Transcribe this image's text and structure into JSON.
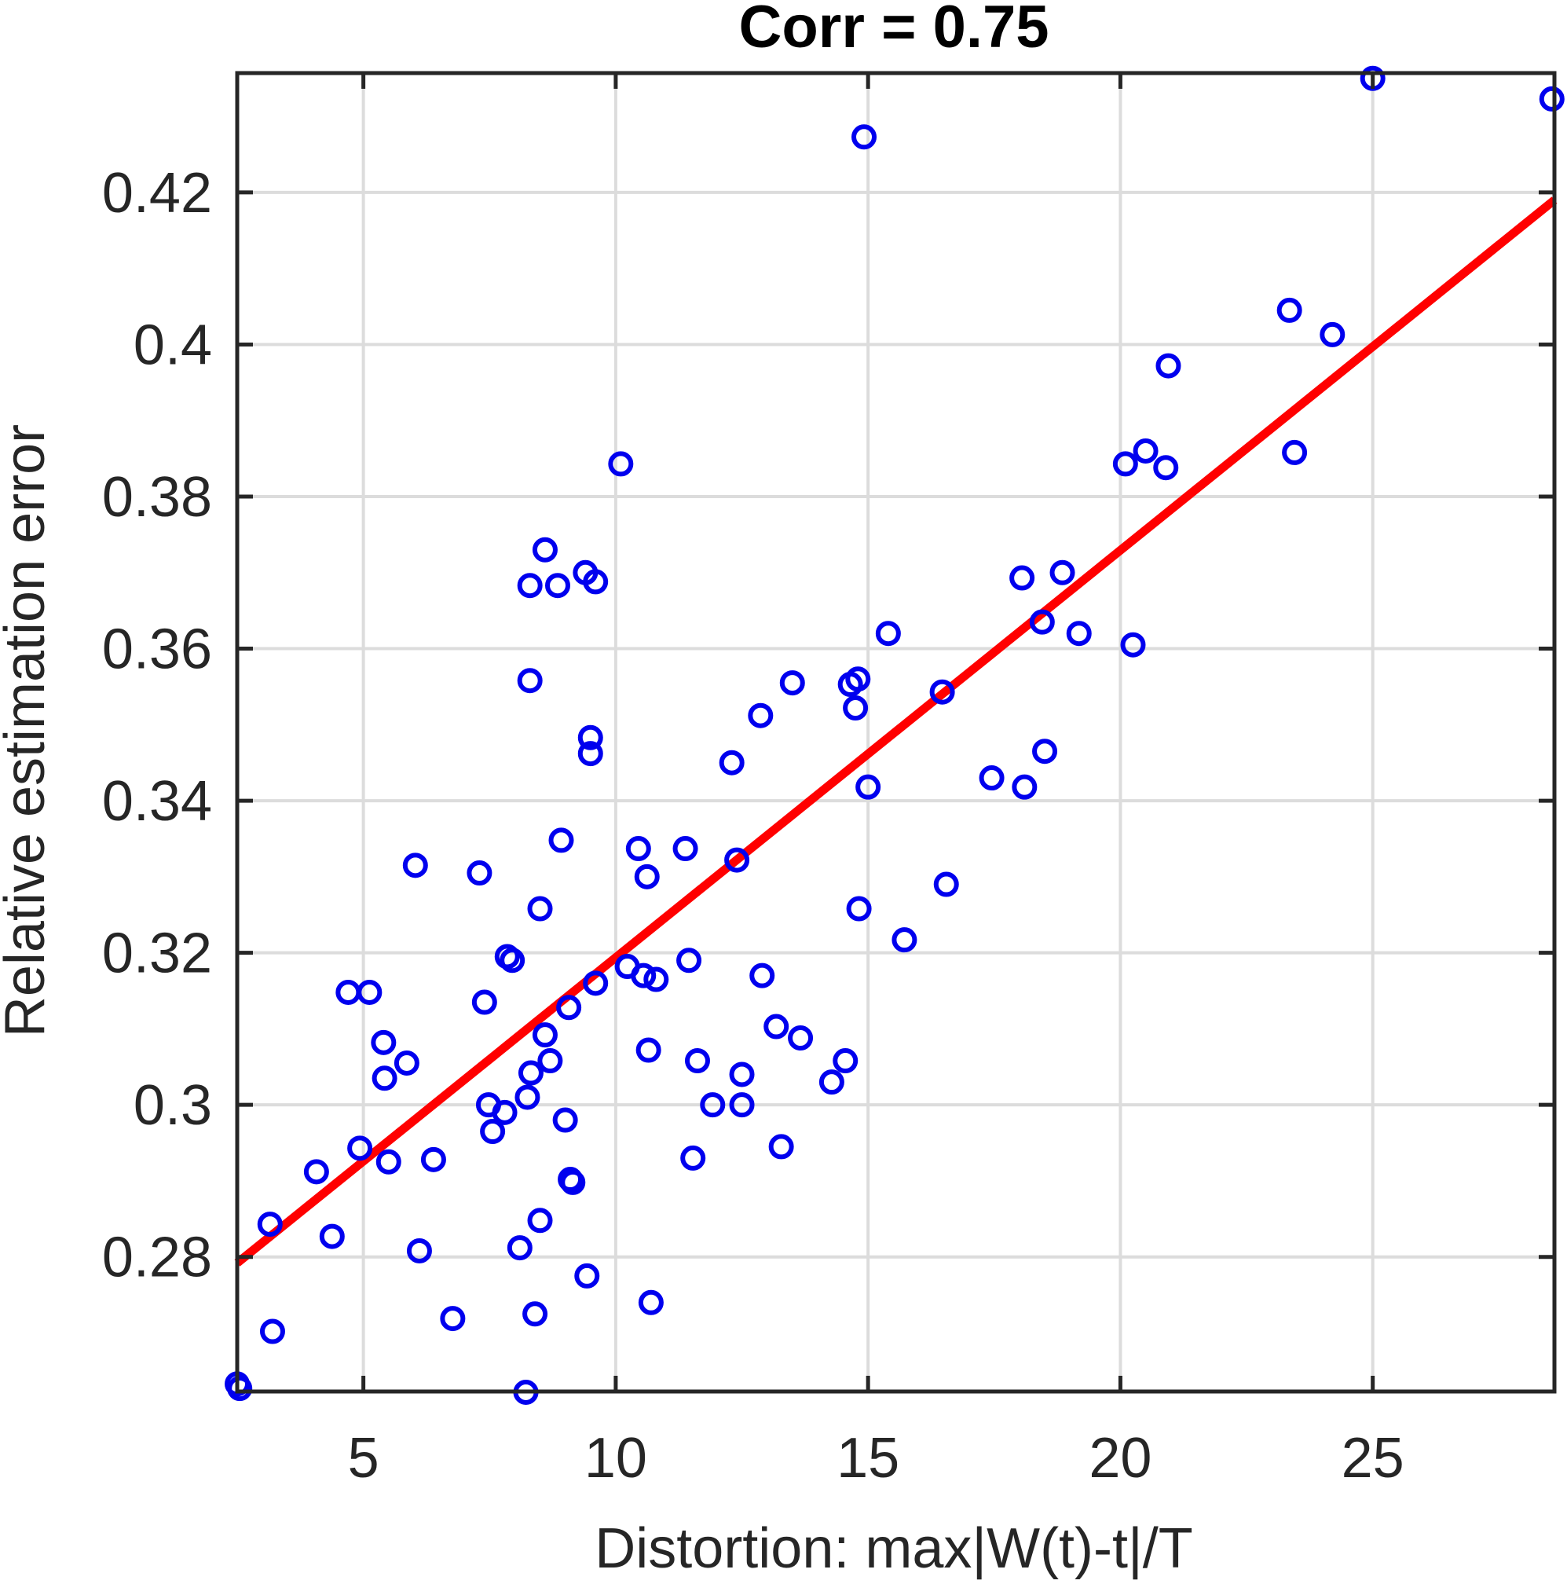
{
  "chart_data": {
    "type": "scatter",
    "title": "Corr = 0.75",
    "xlabel": "Distortion: max|W(t)-t|/T",
    "ylabel": "Relative estimation error",
    "xlim": [
      2.5,
      28.6
    ],
    "ylim": [
      0.2623,
      0.4357
    ],
    "xticks": [
      5,
      10,
      15,
      20,
      25
    ],
    "yticks": [
      0.28,
      0.3,
      0.32,
      0.34,
      0.36,
      0.38,
      0.4,
      0.42
    ],
    "xtick_labels": [
      "5",
      "10",
      "15",
      "20",
      "25"
    ],
    "ytick_labels": [
      "0.28",
      "0.3",
      "0.32",
      "0.34",
      "0.36",
      "0.38",
      "0.4",
      "0.42"
    ],
    "grid": true,
    "marker_color": "#0000ee",
    "fit_color": "#ff0000",
    "fit_line": {
      "x": [
        2.5,
        28.6
      ],
      "y": [
        0.2792,
        0.419
      ]
    },
    "points": [
      [
        2.5,
        0.2633
      ],
      [
        2.55,
        0.2627
      ],
      [
        3.15,
        0.2843
      ],
      [
        3.2,
        0.2702
      ],
      [
        4.07,
        0.2912
      ],
      [
        4.38,
        0.2827
      ],
      [
        4.7,
        0.3148
      ],
      [
        4.93,
        0.2943
      ],
      [
        5.12,
        0.3148
      ],
      [
        5.4,
        0.3082
      ],
      [
        5.42,
        0.3035
      ],
      [
        5.5,
        0.2925
      ],
      [
        5.86,
        0.3055
      ],
      [
        6.03,
        0.3315
      ],
      [
        6.11,
        0.2808
      ],
      [
        6.39,
        0.2928
      ],
      [
        6.77,
        0.2719
      ],
      [
        7.3,
        0.3305
      ],
      [
        7.4,
        0.3135
      ],
      [
        7.48,
        0.3
      ],
      [
        7.56,
        0.2965
      ],
      [
        7.8,
        0.299
      ],
      [
        7.85,
        0.3195
      ],
      [
        7.95,
        0.319
      ],
      [
        8.1,
        0.2812
      ],
      [
        8.22,
        0.2622
      ],
      [
        8.25,
        0.301
      ],
      [
        8.3,
        0.3683
      ],
      [
        8.3,
        0.3558
      ],
      [
        8.32,
        0.3042
      ],
      [
        8.4,
        0.2725
      ],
      [
        8.5,
        0.3258
      ],
      [
        8.5,
        0.2848
      ],
      [
        8.6,
        0.373
      ],
      [
        8.6,
        0.3092
      ],
      [
        8.7,
        0.3058
      ],
      [
        8.85,
        0.3683
      ],
      [
        8.92,
        0.3348
      ],
      [
        9.0,
        0.298
      ],
      [
        9.07,
        0.3128
      ],
      [
        9.1,
        0.2902
      ],
      [
        9.15,
        0.2898
      ],
      [
        9.4,
        0.37
      ],
      [
        9.43,
        0.2775
      ],
      [
        9.5,
        0.3483
      ],
      [
        9.5,
        0.3462
      ],
      [
        9.6,
        0.3688
      ],
      [
        9.6,
        0.316
      ],
      [
        10.1,
        0.3843
      ],
      [
        10.23,
        0.3182
      ],
      [
        10.45,
        0.3337
      ],
      [
        10.55,
        0.317
      ],
      [
        10.62,
        0.33
      ],
      [
        10.65,
        0.3072
      ],
      [
        10.7,
        0.274
      ],
      [
        10.8,
        0.3165
      ],
      [
        11.38,
        0.3337
      ],
      [
        11.45,
        0.319
      ],
      [
        11.53,
        0.293
      ],
      [
        11.62,
        0.3058
      ],
      [
        11.92,
        0.3
      ],
      [
        12.3,
        0.345
      ],
      [
        12.4,
        0.3322
      ],
      [
        12.5,
        0.304
      ],
      [
        12.5,
        0.3
      ],
      [
        12.87,
        0.3512
      ],
      [
        12.9,
        0.317
      ],
      [
        13.18,
        0.3103
      ],
      [
        13.28,
        0.2945
      ],
      [
        13.5,
        0.3555
      ],
      [
        13.66,
        0.3088
      ],
      [
        14.28,
        0.303
      ],
      [
        14.55,
        0.3058
      ],
      [
        14.65,
        0.3553
      ],
      [
        14.75,
        0.3522
      ],
      [
        14.8,
        0.356
      ],
      [
        14.82,
        0.3258
      ],
      [
        14.92,
        0.4273
      ],
      [
        15.0,
        0.3418
      ],
      [
        15.4,
        0.362
      ],
      [
        15.72,
        0.3217
      ],
      [
        16.47,
        0.3543
      ],
      [
        16.55,
        0.329
      ],
      [
        17.45,
        0.343
      ],
      [
        18.05,
        0.3693
      ],
      [
        18.1,
        0.3418
      ],
      [
        18.45,
        0.3635
      ],
      [
        18.5,
        0.3465
      ],
      [
        18.85,
        0.37
      ],
      [
        19.18,
        0.362
      ],
      [
        20.1,
        0.3843
      ],
      [
        20.25,
        0.3605
      ],
      [
        20.5,
        0.386
      ],
      [
        20.9,
        0.3838
      ],
      [
        20.95,
        0.3972
      ],
      [
        23.35,
        0.4045
      ],
      [
        23.45,
        0.3858
      ],
      [
        24.2,
        0.4013
      ],
      [
        25.0,
        0.435
      ],
      [
        28.55,
        0.4323
      ]
    ]
  }
}
